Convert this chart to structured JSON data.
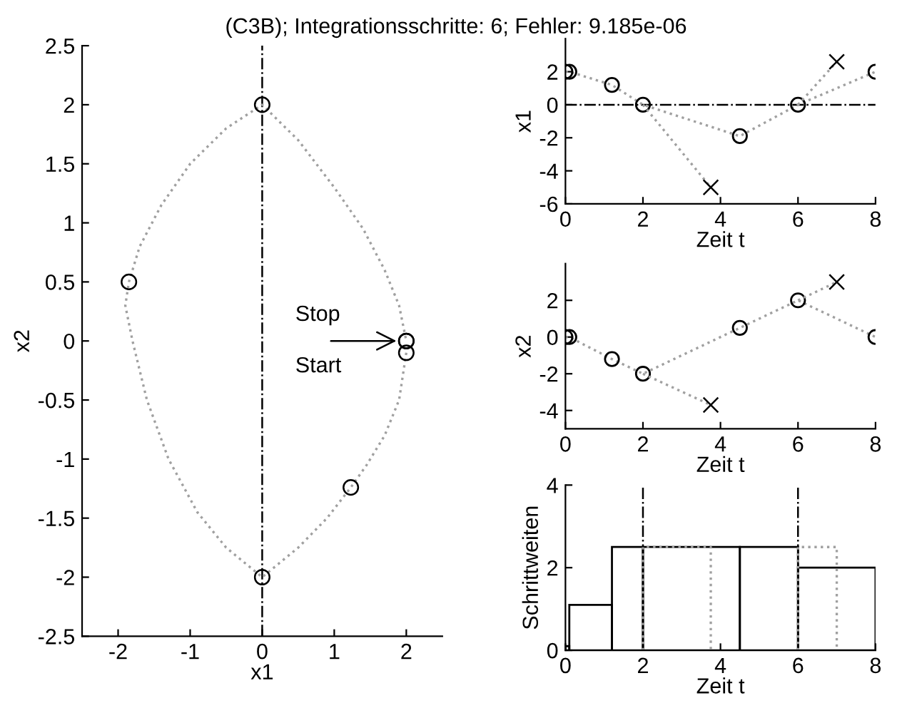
{
  "chart_data": [
    {
      "type": "line",
      "title": "(C3B); Integrationsschritte: 6; Fehler: 9.185e-06",
      "xlabel": "x1",
      "ylabel": "x2",
      "series": [
        {
          "color": "#a0a0a0",
          "line_style": "dotted",
          "marker": "none",
          "x": [
            2,
            1.9,
            1.7,
            1.45,
            1.23,
            0.9,
            0.5,
            0,
            -0.5,
            -0.9,
            -1.3,
            -1.6,
            -1.8,
            -1.9,
            -1.85,
            -1.7,
            -1.4,
            -1.0,
            -0.5,
            0,
            0.5,
            1.0,
            1.4,
            1.7,
            1.9,
            2
          ],
          "values": [
            -0.1,
            -0.5,
            -0.8,
            -1.05,
            -1.24,
            -1.5,
            -1.75,
            -2,
            -1.75,
            -1.45,
            -1.0,
            -0.5,
            0,
            0.3,
            0.5,
            0.8,
            1.15,
            1.5,
            1.8,
            2,
            1.7,
            1.3,
            0.95,
            0.6,
            0.3,
            0
          ]
        },
        {
          "type": "scatter",
          "color": "#000000",
          "marker": "circle",
          "x": [
            2,
            2,
            1.23,
            0,
            -1.85,
            0,
            2
          ],
          "values": [
            0,
            -0.1,
            -1.24,
            -2,
            0.5,
            2,
            0
          ]
        }
      ],
      "xlim": [
        -2.5,
        2.5
      ],
      "xticks": [
        -2,
        -1,
        0,
        1,
        2
      ],
      "ylim": [
        -2.5,
        2.5
      ],
      "yticks": [
        -2.5,
        -2,
        -1.5,
        -1,
        -0.5,
        0,
        0.5,
        1,
        1.5,
        2,
        2.5
      ],
      "ref_lines": [
        {
          "axis": "x",
          "value": 0,
          "color": "#000000",
          "line_style": "dashdot"
        }
      ],
      "annotations": [
        {
          "text": "Stop",
          "x": 2,
          "y": 0
        },
        {
          "text": "Start",
          "x": 2,
          "y": 0
        }
      ],
      "grid": false,
      "legend": false
    },
    {
      "type": "line",
      "xlabel": "Zeit t",
      "ylabel": "x1",
      "series": [
        {
          "color": "#a0a0a0",
          "line_style": "dotted",
          "marker": "circle",
          "x": [
            0,
            0.1,
            1.2,
            2,
            4.5,
            6,
            8
          ],
          "values": [
            2,
            2,
            1.2,
            0,
            -1.9,
            0,
            2
          ]
        },
        {
          "type": "line",
          "color": "#a0a0a0",
          "line_style": "dotted",
          "marker": "none",
          "x": [
            2,
            3.75
          ],
          "values": [
            0,
            -5
          ]
        },
        {
          "type": "line",
          "color": "#a0a0a0",
          "line_style": "dotted",
          "marker": "none",
          "x": [
            6,
            7
          ],
          "values": [
            0,
            2.6
          ]
        },
        {
          "type": "scatter",
          "color": "#000000",
          "marker": "cross",
          "x": [
            3.75,
            7
          ],
          "values": [
            -5,
            2.6
          ]
        }
      ],
      "xlim": [
        0,
        8
      ],
      "xticks": [
        0,
        2,
        4,
        6,
        8
      ],
      "ylim": [
        -6,
        4
      ],
      "yticks": [
        -6,
        -4,
        -2,
        0,
        2
      ],
      "ref_lines": [
        {
          "axis": "y",
          "value": 0,
          "color": "#000000",
          "line_style": "dashdot"
        }
      ],
      "grid": false,
      "legend": false
    },
    {
      "type": "line",
      "xlabel": "Zeit t",
      "ylabel": "x2",
      "series": [
        {
          "color": "#a0a0a0",
          "line_style": "dotted",
          "marker": "circle",
          "x": [
            0,
            0.1,
            1.2,
            2,
            4.5,
            6,
            8
          ],
          "values": [
            0,
            0,
            -1.2,
            -2,
            0.5,
            2,
            0
          ]
        },
        {
          "type": "line",
          "color": "#a0a0a0",
          "line_style": "dotted",
          "marker": "none",
          "x": [
            2,
            3.75
          ],
          "values": [
            -2,
            -3.7
          ]
        },
        {
          "type": "line",
          "color": "#a0a0a0",
          "line_style": "dotted",
          "marker": "none",
          "x": [
            6,
            7
          ],
          "values": [
            2,
            3
          ]
        },
        {
          "type": "scatter",
          "color": "#000000",
          "marker": "cross",
          "x": [
            3.75,
            7
          ],
          "values": [
            -3.7,
            3
          ]
        }
      ],
      "xlim": [
        0,
        8
      ],
      "xticks": [
        0,
        2,
        4,
        6,
        8
      ],
      "ylim": [
        -5,
        4
      ],
      "yticks": [
        -4,
        -2,
        0,
        2
      ],
      "grid": false,
      "legend": false
    },
    {
      "type": "histogram",
      "xlabel": "Zeit t",
      "ylabel": "Schrittweiten",
      "bins": [
        0,
        0.1,
        1.2,
        2,
        4.5,
        6,
        8
      ],
      "values": [
        0.1,
        1.1,
        2.5,
        2.5,
        2.5,
        2
      ],
      "color": "#000000",
      "series": [
        {
          "type": "line",
          "color": "#a0a0a0",
          "line_style": "dotted",
          "marker": "none",
          "x": [
            2,
            2,
            3.75,
            3.75
          ],
          "values": [
            0,
            2.5,
            2.5,
            0
          ]
        },
        {
          "type": "line",
          "color": "#a0a0a0",
          "line_style": "dotted",
          "marker": "none",
          "x": [
            6,
            6,
            7,
            7
          ],
          "values": [
            0,
            2.5,
            2.5,
            0
          ]
        }
      ],
      "xlim": [
        0,
        8
      ],
      "xticks": [
        0,
        2,
        4,
        6,
        8
      ],
      "ylim": [
        0,
        4
      ],
      "yticks": [
        0,
        2,
        4
      ],
      "ref_lines": [
        {
          "axis": "x",
          "value": 2,
          "color": "#000000",
          "line_style": "dashdot"
        },
        {
          "axis": "x",
          "value": 6,
          "color": "#000000",
          "line_style": "dashdot"
        }
      ],
      "grid": false,
      "legend": false
    }
  ]
}
